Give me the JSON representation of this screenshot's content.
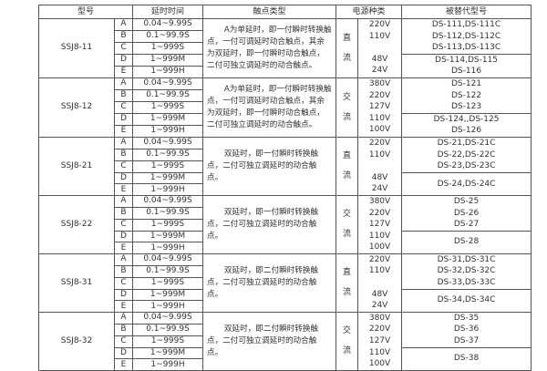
{
  "headers": [
    "型号",
    "延时时间",
    "触点类型",
    "电源种类",
    "被替代型号"
  ],
  "groups": [
    {
      "model": "SSJ8-11",
      "rows": [
        [
          "A",
          "0.04~9.99S"
        ],
        [
          "B",
          "0.1~99.9S"
        ],
        [
          "C",
          "1~999S"
        ],
        [
          "D",
          "1~999M"
        ],
        [
          "E",
          "1~999H"
        ]
      ],
      "contact": "A为单延时，即一付瞬时转换触点，一付可调延时动合触点，其余为双延时，即一付瞬时动合触点，二付可独立调延时的动合触点。",
      "power_type": [
        "直",
        "流"
      ],
      "voltages": [
        "220V",
        "110V",
        "",
        "48V",
        "24V"
      ],
      "replace_top": [
        "DS-111,DS-111C",
        "DS-112,DS-112C",
        "DS-113,DS-113C"
      ],
      "replace_bottom": [
        "DS-114,DS-115",
        "DS-116"
      ]
    },
    {
      "model": "SSJ8-12",
      "rows": [
        [
          "A",
          "0.04~9.99S"
        ],
        [
          "B",
          "0.1~99.9S"
        ],
        [
          "C",
          "1~999S"
        ],
        [
          "D",
          "1~999M"
        ],
        [
          "E",
          "1~999H"
        ]
      ],
      "contact": "A为单延时，即一付瞬时转换触点，一付可调延时动合触点，其余为双延时，即一付瞬时动合触点，二付可独立调延时的动合触点。",
      "power_type": [
        "交",
        "流"
      ],
      "voltages": [
        "380V",
        "220V",
        "127V",
        "110V",
        "100V"
      ],
      "replace_top": [
        "DS-121",
        "DS-122",
        "DS-123"
      ],
      "replace_bottom": [
        "DS-124,,DS-125",
        "DS-126"
      ]
    },
    {
      "model": "SSJ8-21",
      "rows": [
        [
          "A",
          "0.04~9.99S"
        ],
        [
          "B",
          "0.1~99.9S"
        ],
        [
          "C",
          "1~999S"
        ],
        [
          "D",
          "1~999M"
        ],
        [
          "E",
          "1~999H"
        ]
      ],
      "contact": "双延时，即一付瞬时转换触点，二付可独立调延时的动合触点。",
      "power_type": [
        "直",
        "流"
      ],
      "voltages": [
        "220V",
        "110V",
        "",
        "48V",
        "24V"
      ],
      "replace_top": [
        "DS-21,DS-21C",
        "DS-22,DS-22C",
        "DS-23,DS-23C"
      ],
      "replace_bottom": [
        "DS-24,DS-24C"
      ]
    },
    {
      "model": "SSJ8-22",
      "rows": [
        [
          "A",
          "0.04~9.99S"
        ],
        [
          "B",
          "0.1~99.9S"
        ],
        [
          "C",
          "1~999S"
        ],
        [
          "D",
          "1~999M"
        ],
        [
          "E",
          "1~999H"
        ]
      ],
      "contact": "双延时，即一付瞬时转换触点，二付可独立调延时的动合触点。",
      "power_type": [
        "交",
        "流"
      ],
      "voltages": [
        "380V",
        "220V",
        "127V",
        "110V",
        "100V"
      ],
      "replace_top": [
        "DS-25",
        "DS-26",
        "DS-27"
      ],
      "replace_bottom": [
        "DS-28"
      ]
    },
    {
      "model": "SSJ8-31",
      "rows": [
        [
          "A",
          "0.04~9.99S"
        ],
        [
          "B",
          "0.1~99.9S"
        ],
        [
          "C",
          "1~999S"
        ],
        [
          "D",
          "1~999M"
        ],
        [
          "E",
          "1~999H"
        ]
      ],
      "contact": "双延时，即二付瞬时转换触点，二付可独立调延时的动合触点。",
      "power_type": [
        "直",
        "流"
      ],
      "voltages": [
        "220V",
        "110V",
        "",
        "48V",
        "24V"
      ],
      "replace_top": [
        "DS-31,DS-31C",
        "DS-32,DS-32C",
        "DS-33,DS-33C"
      ],
      "replace_bottom": [
        "DS-34,DS-34C"
      ]
    },
    {
      "model": "SSJ8-32",
      "rows": [
        [
          "A",
          "0.04~9.99S"
        ],
        [
          "B",
          "0.1~99.9S"
        ],
        [
          "C",
          "1~999S"
        ],
        [
          "D",
          "1~999M"
        ],
        [
          "E",
          "1~999H"
        ]
      ],
      "contact": "双延时，即二付瞬时转换触点，二付可独立调延时的动合触点。",
      "power_type": [
        "交",
        "流"
      ],
      "voltages": [
        "380V",
        "220V",
        "127V",
        "110V",
        "100V"
      ],
      "replace_top": [
        "DS-35",
        "DS-36",
        "DS-37"
      ],
      "replace_bottom": [
        "DS-38"
      ]
    }
  ]
}
